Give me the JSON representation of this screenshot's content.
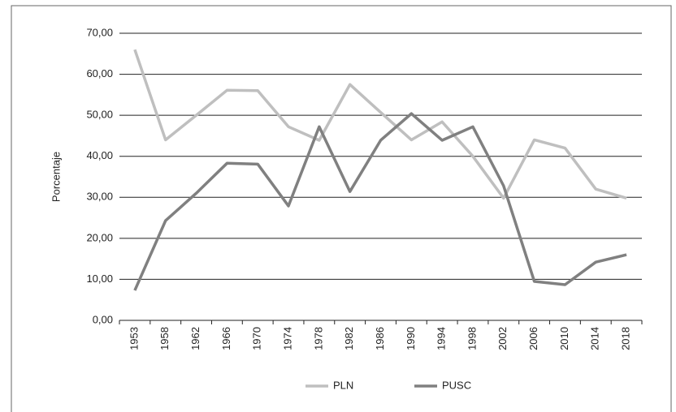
{
  "chart_data": {
    "type": "line",
    "y_label": "Porcentaje",
    "categories": [
      "1953",
      "1958",
      "1962",
      "1966",
      "1970",
      "1974",
      "1978",
      "1982",
      "1986",
      "1990",
      "1994",
      "1998",
      "2002",
      "2006",
      "2010",
      "2014",
      "2018"
    ],
    "series": [
      {
        "name": "PLN",
        "color": "#bfbfbf",
        "values": [
          66,
          44,
          50,
          56.1,
          56,
          47.2,
          43.9,
          57.5,
          50.7,
          44,
          48.4,
          40,
          29.8,
          44,
          42,
          32,
          29.8
        ]
      },
      {
        "name": "PUSC",
        "color": "#808080",
        "values": [
          7.3,
          24.3,
          31,
          38.3,
          38.1,
          27.9,
          47.2,
          31.4,
          43.9,
          50.4,
          43.9,
          47.2,
          32.8,
          9.5,
          8.7,
          14.2,
          16
        ]
      }
    ],
    "ylim": [
      0,
      70
    ],
    "yticks": [
      {
        "value": 0,
        "label": "0,00"
      },
      {
        "value": 10,
        "label": "10,00"
      },
      {
        "value": 20,
        "label": "20,00"
      },
      {
        "value": 30,
        "label": "30,00"
      },
      {
        "value": 40,
        "label": "40,00"
      },
      {
        "value": 50,
        "label": "50,00"
      },
      {
        "value": 60,
        "label": "60,00"
      },
      {
        "value": 70,
        "label": "70,00"
      }
    ],
    "grid": true,
    "legend": "bottom"
  }
}
